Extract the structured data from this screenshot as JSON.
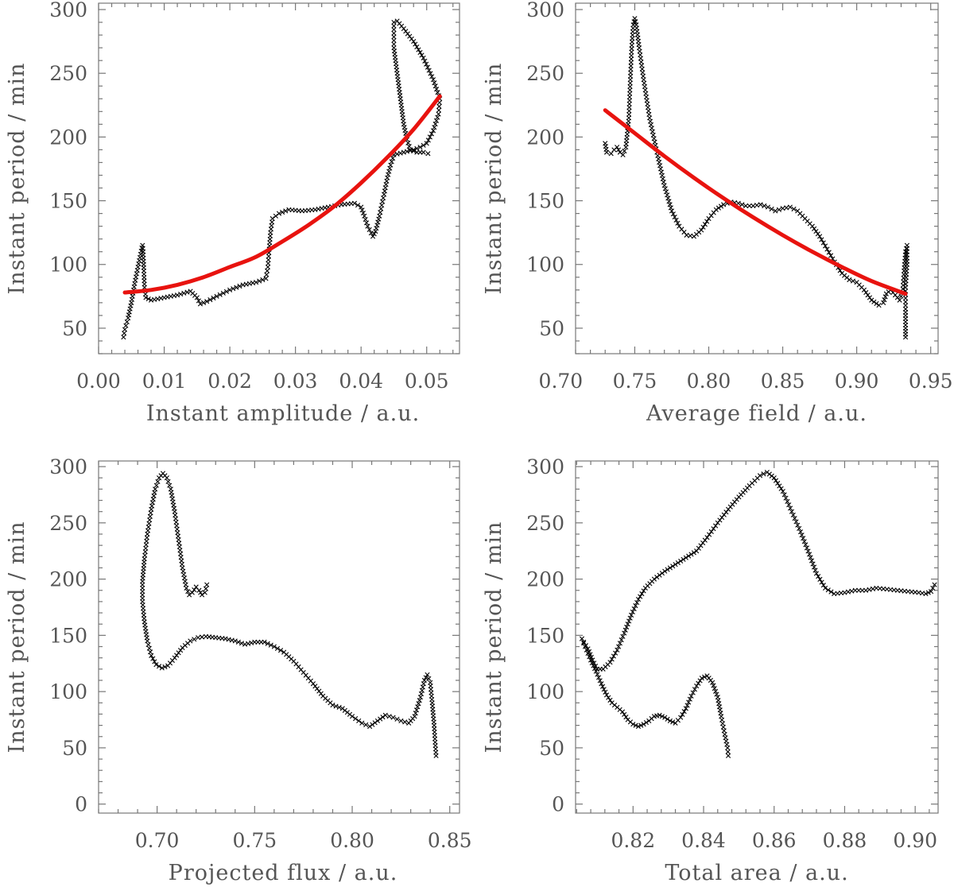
{
  "colors": {
    "marker": "#000000",
    "fit": "#e8130f",
    "axis": "#777777",
    "text": "#555555"
  },
  "chart_data": [
    {
      "type": "scatter",
      "xlabel": "Instant amplitude / a.u.",
      "ylabel": "Instant period / min",
      "xlim": [
        0.0,
        0.055
      ],
      "ylim": [
        30,
        305
      ],
      "xticks": [
        "0.00",
        "0.01",
        "0.02",
        "0.03",
        "0.04",
        "0.05"
      ],
      "yticks": [
        "50",
        "100",
        "150",
        "200",
        "250",
        "300"
      ],
      "marker": "x",
      "fit_color": "#e8130f",
      "path": [
        [
          0.0038,
          43
        ],
        [
          0.004,
          49
        ],
        [
          0.0045,
          58
        ],
        [
          0.005,
          70
        ],
        [
          0.0055,
          85
        ],
        [
          0.006,
          98
        ],
        [
          0.0064,
          108
        ],
        [
          0.0066,
          113
        ],
        [
          0.0067,
          115
        ],
        [
          0.0068,
          110
        ],
        [
          0.0069,
          95
        ],
        [
          0.007,
          82
        ],
        [
          0.0072,
          74
        ],
        [
          0.008,
          72
        ],
        [
          0.01,
          74
        ],
        [
          0.012,
          76
        ],
        [
          0.014,
          79
        ],
        [
          0.015,
          74
        ],
        [
          0.0155,
          69
        ],
        [
          0.0165,
          71
        ],
        [
          0.018,
          75
        ],
        [
          0.02,
          80
        ],
        [
          0.022,
          84
        ],
        [
          0.024,
          86
        ],
        [
          0.0255,
          89
        ],
        [
          0.0258,
          98
        ],
        [
          0.026,
          112
        ],
        [
          0.0262,
          125
        ],
        [
          0.0265,
          136
        ],
        [
          0.0275,
          140
        ],
        [
          0.029,
          143
        ],
        [
          0.031,
          142
        ],
        [
          0.033,
          143
        ],
        [
          0.035,
          145
        ],
        [
          0.037,
          147
        ],
        [
          0.039,
          148
        ],
        [
          0.04,
          145
        ],
        [
          0.0405,
          138
        ],
        [
          0.041,
          130
        ],
        [
          0.0418,
          122
        ],
        [
          0.0422,
          126
        ],
        [
          0.0428,
          138
        ],
        [
          0.0435,
          155
        ],
        [
          0.044,
          168
        ],
        [
          0.0445,
          178
        ],
        [
          0.045,
          186
        ],
        [
          0.0465,
          188
        ],
        [
          0.048,
          190
        ],
        [
          0.049,
          192
        ],
        [
          0.05,
          195
        ],
        [
          0.051,
          205
        ],
        [
          0.0518,
          218
        ],
        [
          0.052,
          230
        ],
        [
          0.051,
          245
        ],
        [
          0.0495,
          262
        ],
        [
          0.048,
          275
        ],
        [
          0.0465,
          285
        ],
        [
          0.0455,
          291
        ],
        [
          0.045,
          290
        ],
        [
          0.045,
          270
        ],
        [
          0.0455,
          250
        ],
        [
          0.046,
          230
        ],
        [
          0.0465,
          210
        ],
        [
          0.047,
          198
        ],
        [
          0.0475,
          190
        ],
        [
          0.0485,
          188
        ],
        [
          0.0495,
          188
        ],
        [
          0.0502,
          187
        ]
      ],
      "fit": [
        [
          0.004,
          78
        ],
        [
          0.008,
          80
        ],
        [
          0.012,
          84
        ],
        [
          0.016,
          90
        ],
        [
          0.02,
          98
        ],
        [
          0.024,
          106
        ],
        [
          0.028,
          118
        ],
        [
          0.032,
          131
        ],
        [
          0.036,
          146
        ],
        [
          0.04,
          164
        ],
        [
          0.044,
          184
        ],
        [
          0.048,
          206
        ],
        [
          0.052,
          232
        ]
      ]
    },
    {
      "type": "scatter",
      "xlabel": "Average field / a.u.",
      "ylabel": "Instant period / min",
      "xlim": [
        0.71,
        0.955
      ],
      "ylim": [
        30,
        305
      ],
      "xticks": [
        "0.70",
        "0.75",
        "0.80",
        "0.85",
        "0.90",
        "0.95"
      ],
      "yticks": [
        "50",
        "100",
        "150",
        "200",
        "250",
        "300"
      ],
      "marker": "x",
      "fit_color": "#e8130f",
      "path": [
        [
          0.73,
          195
        ],
        [
          0.731,
          188
        ],
        [
          0.734,
          187
        ],
        [
          0.736,
          190
        ],
        [
          0.738,
          192
        ],
        [
          0.74,
          188
        ],
        [
          0.742,
          186
        ],
        [
          0.744,
          192
        ],
        [
          0.746,
          215
        ],
        [
          0.747,
          245
        ],
        [
          0.748,
          272
        ],
        [
          0.749,
          288
        ],
        [
          0.75,
          293
        ],
        [
          0.751,
          288
        ],
        [
          0.753,
          270
        ],
        [
          0.756,
          245
        ],
        [
          0.76,
          215
        ],
        [
          0.765,
          188
        ],
        [
          0.77,
          162
        ],
        [
          0.775,
          142
        ],
        [
          0.78,
          130
        ],
        [
          0.785,
          123
        ],
        [
          0.79,
          122
        ],
        [
          0.795,
          127
        ],
        [
          0.8,
          136
        ],
        [
          0.805,
          143
        ],
        [
          0.81,
          147
        ],
        [
          0.815,
          149
        ],
        [
          0.82,
          148
        ],
        [
          0.825,
          146
        ],
        [
          0.83,
          146
        ],
        [
          0.835,
          147
        ],
        [
          0.84,
          145
        ],
        [
          0.845,
          142
        ],
        [
          0.85,
          144
        ],
        [
          0.855,
          145
        ],
        [
          0.86,
          142
        ],
        [
          0.865,
          136
        ],
        [
          0.87,
          130
        ],
        [
          0.875,
          122
        ],
        [
          0.88,
          112
        ],
        [
          0.885,
          102
        ],
        [
          0.89,
          93
        ],
        [
          0.895,
          88
        ],
        [
          0.9,
          86
        ],
        [
          0.905,
          80
        ],
        [
          0.91,
          72
        ],
        [
          0.915,
          68
        ],
        [
          0.918,
          70
        ],
        [
          0.92,
          77
        ],
        [
          0.923,
          80
        ],
        [
          0.926,
          76
        ],
        [
          0.929,
          72
        ],
        [
          0.931,
          78
        ],
        [
          0.932,
          95
        ],
        [
          0.933,
          110
        ],
        [
          0.934,
          115
        ],
        [
          0.934,
          100
        ],
        [
          0.933,
          82
        ],
        [
          0.933,
          65
        ],
        [
          0.933,
          50
        ],
        [
          0.933,
          43
        ]
      ],
      "fit": [
        [
          0.73,
          221
        ],
        [
          0.75,
          203
        ],
        [
          0.77,
          185
        ],
        [
          0.79,
          168
        ],
        [
          0.81,
          152
        ],
        [
          0.83,
          137
        ],
        [
          0.85,
          123
        ],
        [
          0.87,
          110
        ],
        [
          0.89,
          98
        ],
        [
          0.91,
          87
        ],
        [
          0.933,
          77
        ]
      ]
    },
    {
      "type": "scatter",
      "xlabel": "Projected flux / a.u.",
      "ylabel": "Instant period / min",
      "xlim": [
        0.67,
        0.855
      ],
      "ylim": [
        -8,
        305
      ],
      "xticks": [
        "0.70",
        "0.75",
        "0.80",
        "0.85"
      ],
      "yticks": [
        "0",
        "50",
        "100",
        "150",
        "200",
        "250",
        "300"
      ],
      "marker": "x",
      "path": [
        [
          0.7255,
          195
        ],
        [
          0.7245,
          188
        ],
        [
          0.723,
          186
        ],
        [
          0.7215,
          190
        ],
        [
          0.72,
          193
        ],
        [
          0.718,
          188
        ],
        [
          0.7165,
          186
        ],
        [
          0.715,
          192
        ],
        [
          0.713,
          210
        ],
        [
          0.711,
          235
        ],
        [
          0.709,
          260
        ],
        [
          0.707,
          280
        ],
        [
          0.705,
          290
        ],
        [
          0.703,
          294
        ],
        [
          0.701,
          290
        ],
        [
          0.699,
          280
        ],
        [
          0.697,
          262
        ],
        [
          0.695,
          240
        ],
        [
          0.6935,
          218
        ],
        [
          0.6925,
          198
        ],
        [
          0.6925,
          180
        ],
        [
          0.6935,
          162
        ],
        [
          0.695,
          145
        ],
        [
          0.697,
          132
        ],
        [
          0.6995,
          124
        ],
        [
          0.7025,
          121
        ],
        [
          0.7055,
          123
        ],
        [
          0.709,
          130
        ],
        [
          0.713,
          139
        ],
        [
          0.717,
          145
        ],
        [
          0.721,
          148
        ],
        [
          0.725,
          149
        ],
        [
          0.73,
          148
        ],
        [
          0.735,
          147
        ],
        [
          0.74,
          145
        ],
        [
          0.745,
          142
        ],
        [
          0.75,
          144
        ],
        [
          0.755,
          144
        ],
        [
          0.76,
          140
        ],
        [
          0.765,
          135
        ],
        [
          0.77,
          127
        ],
        [
          0.775,
          117
        ],
        [
          0.78,
          107
        ],
        [
          0.785,
          96
        ],
        [
          0.79,
          88
        ],
        [
          0.795,
          85
        ],
        [
          0.8,
          78
        ],
        [
          0.805,
          72
        ],
        [
          0.809,
          69
        ],
        [
          0.813,
          74
        ],
        [
          0.817,
          79
        ],
        [
          0.821,
          77
        ],
        [
          0.825,
          74
        ],
        [
          0.829,
          72
        ],
        [
          0.832,
          78
        ],
        [
          0.835,
          95
        ],
        [
          0.837,
          110
        ],
        [
          0.8385,
          115
        ],
        [
          0.84,
          108
        ],
        [
          0.841,
          90
        ],
        [
          0.842,
          70
        ],
        [
          0.8425,
          55
        ],
        [
          0.843,
          43
        ]
      ]
    },
    {
      "type": "scatter",
      "xlabel": "Total area / a.u.",
      "ylabel": "Instant period / min",
      "xlim": [
        0.8037,
        0.9065
      ],
      "ylim": [
        -8,
        305
      ],
      "xticks": [
        "0.82",
        "0.84",
        "0.86",
        "0.88",
        "0.90"
      ],
      "yticks": [
        "0",
        "50",
        "100",
        "150",
        "200",
        "250",
        "300"
      ],
      "marker": "x",
      "path": [
        [
          0.847,
          43
        ],
        [
          0.8468,
          50
        ],
        [
          0.846,
          62
        ],
        [
          0.845,
          78
        ],
        [
          0.844,
          95
        ],
        [
          0.8425,
          108
        ],
        [
          0.841,
          114
        ],
        [
          0.8395,
          112
        ],
        [
          0.838,
          105
        ],
        [
          0.8365,
          96
        ],
        [
          0.835,
          85
        ],
        [
          0.8335,
          77
        ],
        [
          0.832,
          72
        ],
        [
          0.8305,
          74
        ],
        [
          0.829,
          77
        ],
        [
          0.8275,
          79
        ],
        [
          0.826,
          78
        ],
        [
          0.8245,
          74
        ],
        [
          0.823,
          71
        ],
        [
          0.8215,
          69
        ],
        [
          0.82,
          71
        ],
        [
          0.8185,
          75
        ],
        [
          0.817,
          82
        ],
        [
          0.8155,
          86
        ],
        [
          0.814,
          90
        ],
        [
          0.8125,
          97
        ],
        [
          0.811,
          107
        ],
        [
          0.8095,
          118
        ],
        [
          0.808,
          128
        ],
        [
          0.8068,
          137
        ],
        [
          0.806,
          143
        ],
        [
          0.8055,
          147
        ],
        [
          0.806,
          144
        ],
        [
          0.8072,
          138
        ],
        [
          0.8085,
          128
        ],
        [
          0.8098,
          120
        ],
        [
          0.8115,
          120
        ],
        [
          0.8135,
          126
        ],
        [
          0.8155,
          137
        ],
        [
          0.8175,
          152
        ],
        [
          0.8195,
          168
        ],
        [
          0.8215,
          182
        ],
        [
          0.8235,
          192
        ],
        [
          0.826,
          200
        ],
        [
          0.829,
          207
        ],
        [
          0.832,
          213
        ],
        [
          0.835,
          219
        ],
        [
          0.838,
          225
        ],
        [
          0.841,
          237
        ],
        [
          0.844,
          250
        ],
        [
          0.847,
          262
        ],
        [
          0.85,
          273
        ],
        [
          0.853,
          283
        ],
        [
          0.856,
          292
        ],
        [
          0.858,
          295
        ],
        [
          0.86,
          290
        ],
        [
          0.8625,
          278
        ],
        [
          0.865,
          260
        ],
        [
          0.8675,
          242
        ],
        [
          0.87,
          222
        ],
        [
          0.872,
          205
        ],
        [
          0.8745,
          192
        ],
        [
          0.877,
          187
        ],
        [
          0.88,
          188
        ],
        [
          0.883,
          190
        ],
        [
          0.886,
          190
        ],
        [
          0.889,
          192
        ],
        [
          0.892,
          191
        ],
        [
          0.895,
          190
        ],
        [
          0.898,
          189
        ],
        [
          0.901,
          188
        ],
        [
          0.903,
          187
        ],
        [
          0.9045,
          189
        ],
        [
          0.9055,
          195
        ]
      ]
    }
  ]
}
